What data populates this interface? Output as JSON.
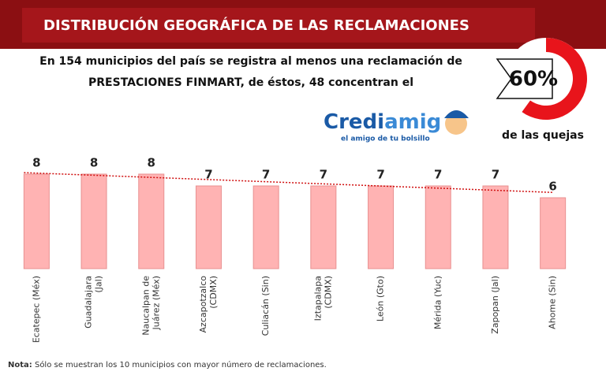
{
  "chart_data": {
    "type": "bar",
    "title": "DISTRIBUCIÓN GEOGRÁFICA DE LAS RECLAMACIONES",
    "subtitle": [
      "En 154 municipios del país se registra al menos una reclamación de",
      "PRESTACIONES FINMART, de éstos, 48 concentran el"
    ],
    "highlight": {
      "value": 60,
      "label": "60%",
      "caption": "de las quejas",
      "color": "#e8141b"
    },
    "logo": {
      "name": [
        "Credi",
        "amig"
      ],
      "tagline": "el amigo de tu bolsillo"
    },
    "categories": [
      [
        "Ecatepec (Méx)"
      ],
      [
        "Guadalajara",
        "(Jal)"
      ],
      [
        "Naucalpan de",
        "Juárez (Méx)"
      ],
      [
        "Azcapotzalco",
        "(CDMX)"
      ],
      [
        "Culiacán (Sin)"
      ],
      [
        "Iztapalapa",
        "(CDMX)"
      ],
      [
        "León (Gto)"
      ],
      [
        "Mérida (Yuc)"
      ],
      [
        "Zapopan (Jal)"
      ],
      [
        "Ahome (Sin)"
      ]
    ],
    "values": [
      8,
      8,
      8,
      7,
      7,
      7,
      7,
      7,
      7,
      6
    ],
    "color": "#ffb3b3",
    "ylim": [
      0,
      8
    ],
    "trendline": true,
    "note": {
      "label": "Nota:",
      "text": "Sólo se muestran los 10 municipios con mayor número de reclamaciones."
    }
  }
}
